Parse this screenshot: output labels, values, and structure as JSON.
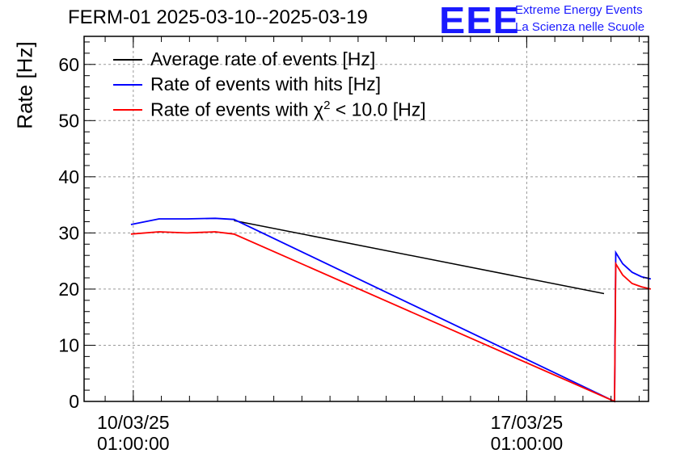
{
  "header": {
    "title": "FERM-01 2025-03-10--2025-03-19"
  },
  "logo": {
    "mark": "EEE",
    "line1": "Extreme Energy Events",
    "line2": "La Scienza nelle Scuole",
    "color": "#1a1aff"
  },
  "chart_data": {
    "type": "line",
    "title": "FERM-01 2025-03-10--2025-03-19",
    "ylabel": "Rate [Hz]",
    "xlabel": "",
    "ylim": [
      0,
      65
    ],
    "yticks": [
      0,
      10,
      20,
      30,
      40,
      50,
      60
    ],
    "xlim": [
      "2025-03-09 04:00",
      "2025-03-19 05:00"
    ],
    "xticks": [
      {
        "x": "2025-03-10 01:00",
        "label_date": "10/03/25",
        "label_time": "01:00:00"
      },
      {
        "x": "2025-03-17 01:00",
        "label_date": "17/03/25",
        "label_time": "01:00:00"
      }
    ],
    "grid": true,
    "legend": "top-left",
    "series": [
      {
        "name": "Average rate of events [Hz]",
        "color": "#000000",
        "points": [
          [
            "2025-03-11 20:00",
            32.2
          ],
          [
            "2025-03-18 10:00",
            19.2
          ]
        ]
      },
      {
        "name": "Rate of events with hits [Hz]",
        "color": "#0000ff",
        "points": [
          [
            "2025-03-10 00:00",
            31.5
          ],
          [
            "2025-03-10 12:00",
            32.5
          ],
          [
            "2025-03-11 00:00",
            32.5
          ],
          [
            "2025-03-11 12:00",
            32.6
          ],
          [
            "2025-03-11 20:00",
            32.4
          ],
          [
            "2025-03-18 14:30",
            0.0
          ],
          [
            "2025-03-18 15:00",
            26.5
          ],
          [
            "2025-03-18 18:00",
            24.5
          ],
          [
            "2025-03-18 22:00",
            23.0
          ],
          [
            "2025-03-19 02:00",
            22.2
          ],
          [
            "2025-03-19 06:00",
            21.8
          ]
        ]
      },
      {
        "name": "Rate of events with χ² < 10.0 [Hz]",
        "name_parts": [
          "Rate of events with χ",
          "2",
          " < 10.0 [Hz]"
        ],
        "color": "#ff0000",
        "points": [
          [
            "2025-03-10 00:00",
            29.8
          ],
          [
            "2025-03-10 12:00",
            30.2
          ],
          [
            "2025-03-11 00:00",
            30.0
          ],
          [
            "2025-03-11 12:00",
            30.2
          ],
          [
            "2025-03-11 20:00",
            29.8
          ],
          [
            "2025-03-18 14:30",
            0.0
          ],
          [
            "2025-03-18 15:00",
            24.5
          ],
          [
            "2025-03-18 18:00",
            22.5
          ],
          [
            "2025-03-18 22:00",
            21.0
          ],
          [
            "2025-03-19 02:00",
            20.4
          ],
          [
            "2025-03-19 06:00",
            20.0
          ]
        ]
      }
    ]
  }
}
